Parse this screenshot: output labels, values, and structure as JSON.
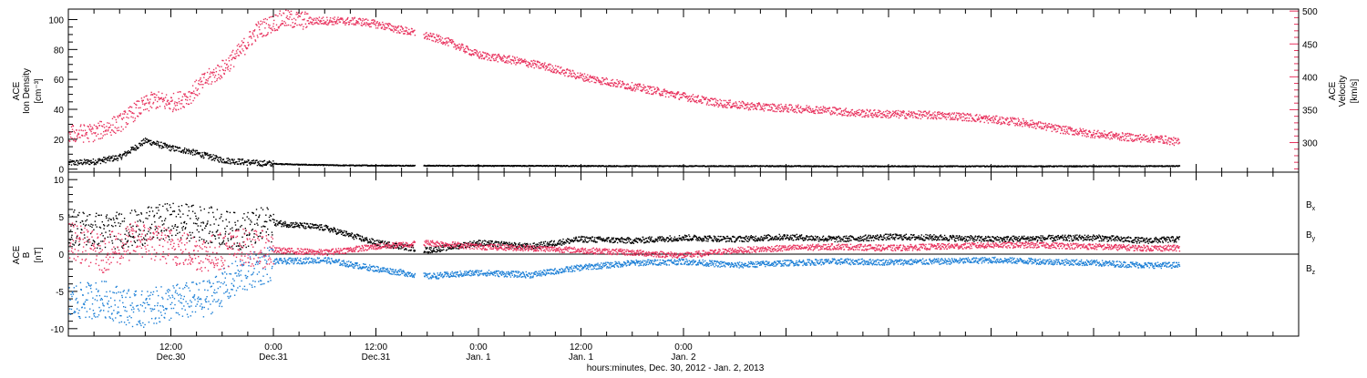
{
  "colors": {
    "black": "#000000",
    "red": "#e8325e",
    "blue": "#1c7fd6"
  },
  "chart_data": [
    {
      "type": "scatter",
      "panel": "top",
      "ylabel_left": [
        "ACE",
        "Ion Density",
        "[cm⁻³]"
      ],
      "ylabel_right": [
        "ACE",
        "Velocity",
        "[km/s]"
      ],
      "ylim_left": [
        -2,
        107
      ],
      "ylim_right": [
        255,
        503
      ],
      "yticks_left": [
        "0",
        "20",
        "40",
        "60",
        "80",
        "100"
      ],
      "yticks_right": [
        "300",
        "350",
        "400",
        "450",
        "500"
      ],
      "series": [
        {
          "axis": "left",
          "color": "black",
          "x_hours": [
            0,
            3,
            6,
            9,
            12,
            14,
            16,
            18,
            22,
            27,
            32,
            36,
            42,
            48,
            54,
            60,
            66,
            72,
            78,
            84,
            90,
            96,
            102,
            108,
            114,
            120,
            126,
            130
          ],
          "values": [
            4,
            5,
            8,
            19,
            14,
            12,
            9,
            6,
            4,
            3,
            2.5,
            2.4,
            2.3,
            2.2,
            2.2,
            2.1,
            2.0,
            2.0,
            2.0,
            2.0,
            1.9,
            1.9,
            1.9,
            1.9,
            1.9,
            1.9,
            2.0,
            2.0
          ]
        },
        {
          "axis": "right",
          "color": "red",
          "x_hours": [
            0,
            3,
            6,
            8,
            10,
            12,
            14,
            16,
            18,
            20,
            22,
            25,
            28,
            31,
            34,
            36,
            40,
            44,
            48,
            52,
            56,
            60,
            64,
            68,
            72,
            76,
            80,
            84,
            88,
            92,
            96,
            100,
            104,
            108,
            112,
            116,
            120,
            124,
            128,
            130
          ],
          "values": [
            313,
            315,
            330,
            350,
            365,
            360,
            370,
            395,
            412,
            438,
            470,
            488,
            485,
            485,
            484,
            480,
            468,
            455,
            433,
            425,
            415,
            400,
            390,
            380,
            370,
            360,
            355,
            352,
            350,
            345,
            343,
            342,
            340,
            335,
            330,
            320,
            313,
            308,
            305,
            300
          ]
        }
      ]
    },
    {
      "type": "scatter",
      "panel": "bottom",
      "ylabel_left": [
        "ACE",
        "B",
        "[nT]"
      ],
      "ylim_left": [
        -11,
        11
      ],
      "yticks_left": [
        "-10",
        "-5",
        "0",
        "5",
        "10"
      ],
      "legend": [
        "B",
        "B",
        "B"
      ],
      "legend_sub": [
        "x",
        "y",
        "z"
      ],
      "series": [
        {
          "name": "Bx",
          "color": "black",
          "x_hours": [
            0,
            4,
            8,
            12,
            16,
            20,
            24,
            30,
            36,
            42,
            48,
            54,
            60,
            66,
            72,
            78,
            84,
            90,
            96,
            102,
            108,
            114,
            120,
            126,
            130
          ],
          "values": [
            3.8,
            3,
            3.5,
            4.5,
            4,
            3,
            4.2,
            3.5,
            1.5,
            0.5,
            1.5,
            1,
            2,
            1.8,
            2.2,
            2,
            2.3,
            2,
            2.3,
            2.2,
            2,
            2.1,
            2.2,
            1.8,
            2
          ]
        },
        {
          "name": "By",
          "color": "blue",
          "x_hours": [
            0,
            4,
            8,
            12,
            16,
            20,
            24,
            30,
            36,
            42,
            48,
            54,
            60,
            66,
            72,
            78,
            84,
            90,
            96,
            102,
            108,
            114,
            120,
            126,
            130
          ],
          "values": [
            -6.5,
            -6,
            -7.5,
            -6.5,
            -6,
            -3,
            -1,
            -0.8,
            -2,
            -3,
            -2.5,
            -2.8,
            -1.8,
            -1.2,
            -1,
            -1.5,
            -1.2,
            -1,
            -1.1,
            -1,
            -0.8,
            -1,
            -1.2,
            -1.5,
            -1.5
          ]
        },
        {
          "name": "Bz",
          "color": "red",
          "x_hours": [
            0,
            4,
            8,
            12,
            16,
            20,
            24,
            30,
            36,
            42,
            48,
            54,
            60,
            66,
            72,
            78,
            84,
            90,
            96,
            102,
            108,
            114,
            120,
            126,
            130
          ],
          "values": [
            2,
            0,
            2,
            1,
            0,
            1,
            0.5,
            0.2,
            1,
            1.5,
            1,
            0.8,
            0.5,
            0.2,
            -0.2,
            0.5,
            0.8,
            1,
            0.8,
            1,
            1.2,
            1.2,
            1,
            0.8,
            0.8
          ]
        }
      ]
    }
  ],
  "x_axis": {
    "start_hour": 0,
    "end_hour": 144,
    "tick_labels": [
      {
        "hour": 12,
        "time": "12:00",
        "date": "Dec.30"
      },
      {
        "hour": 24,
        "time": "0:00",
        "date": "Dec.31"
      },
      {
        "hour": 36,
        "time": "12:00",
        "date": "Dec.31"
      },
      {
        "hour": 48,
        "time": "0:00",
        "date": "Jan. 1"
      },
      {
        "hour": 60,
        "time": "12:00",
        "date": "Jan. 1"
      },
      {
        "hour": 72,
        "time": "0:00",
        "date": "Jan. 2"
      }
    ],
    "xlabel": "hours:minutes, Dec. 30, 2012 - Jan.  2, 2013"
  }
}
